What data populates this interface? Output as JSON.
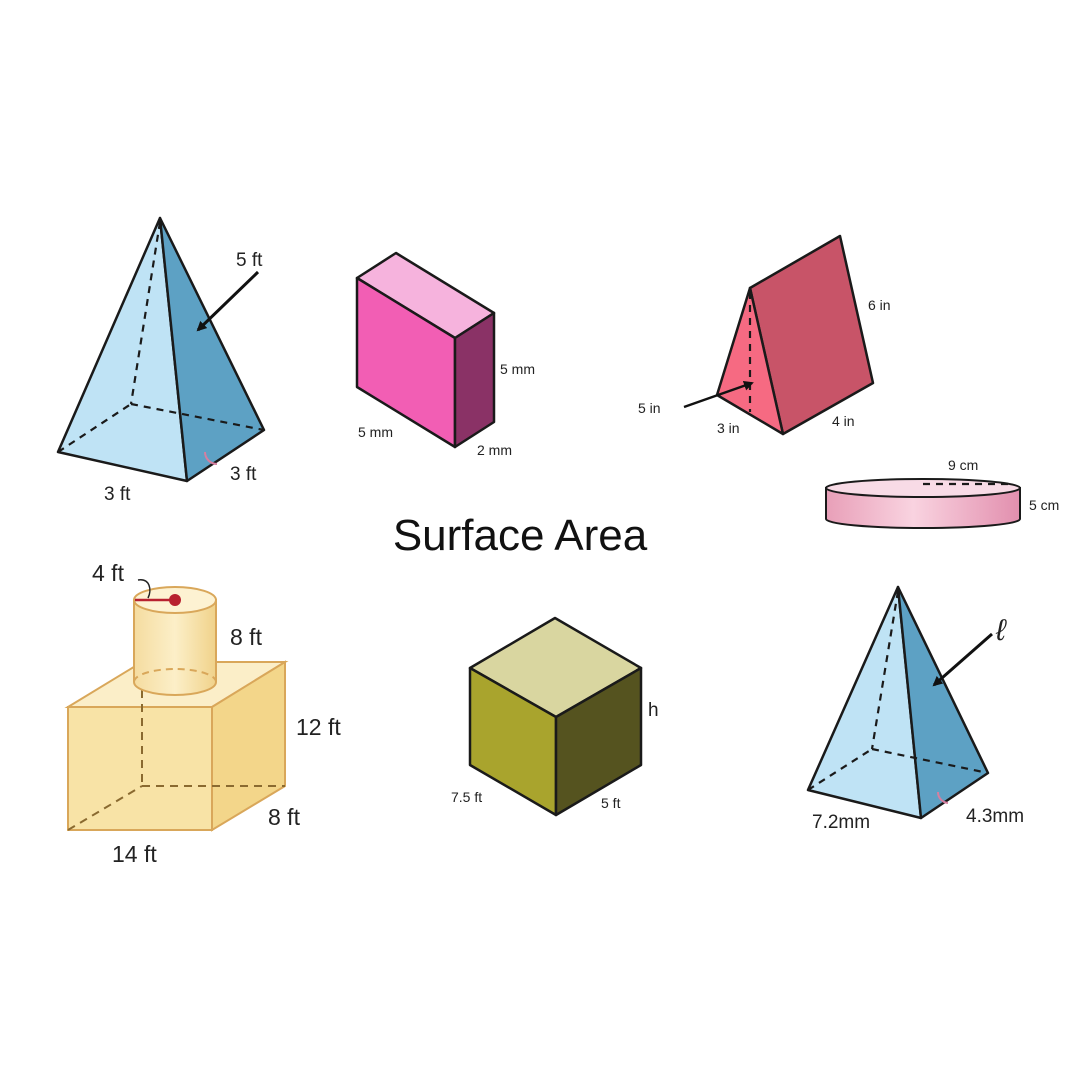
{
  "title": "Surface Area",
  "colors": {
    "pyramid_light": "#bfe3f5",
    "pyramid_dark": "#5da1c4",
    "prism_pink_front": "#f25eb4",
    "prism_pink_top": "#f6b3dd",
    "prism_pink_side": "#8a3266",
    "tri_front": "#f66a82",
    "tri_side": "#c85468",
    "cylinder_pink": "#f1b3c9",
    "composite_box": "#f8e3a6",
    "cube_front": "#a9a42d",
    "cube_top": "#d9d6a0",
    "cube_side": "#55531f"
  },
  "shapes": {
    "square_pyramid_1": {
      "slant_label": "5 ft",
      "base_front": "3 ft",
      "base_side": "3 ft"
    },
    "rect_prism": {
      "height": "5 mm",
      "width": "5 mm",
      "depth": "2 mm"
    },
    "triangular_prism": {
      "length": "6 in",
      "slant": "5 in",
      "base": "3 in",
      "side": "4 in"
    },
    "thin_cylinder": {
      "diameter": "9 cm",
      "height": "5 cm"
    },
    "composite": {
      "cyl_radius": "4 ft",
      "cyl_height": "8 ft",
      "box_height": "12 ft",
      "box_depth": "8 ft",
      "box_width": "14 ft"
    },
    "cube": {
      "height": "h",
      "front_edge": "7.5 ft",
      "side_edge": "5 ft"
    },
    "square_pyramid_2": {
      "slant_symbol": "ℓ",
      "base_front": "7.2mm",
      "base_side": "4.3mm"
    }
  }
}
